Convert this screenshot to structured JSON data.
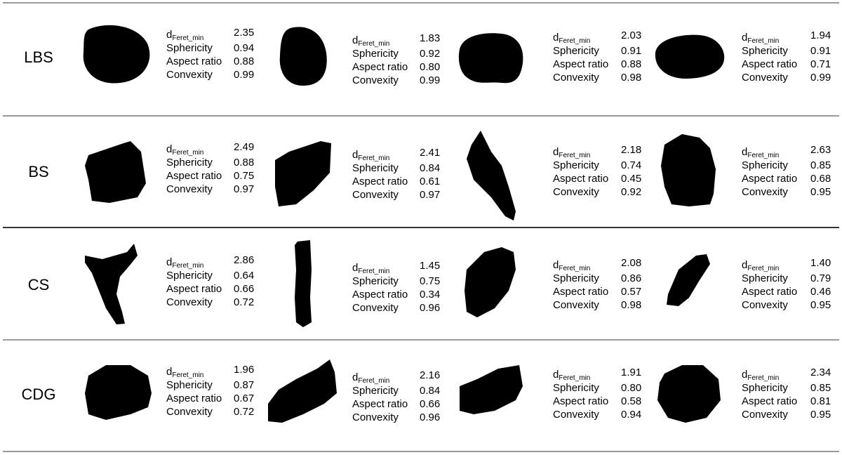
{
  "metric_symbol": "d",
  "metric_subscript": "Feret_min",
  "metric_names": [
    "Sphericity",
    "Aspect ratio",
    "Convexity"
  ],
  "rows": [
    {
      "label": "LBS",
      "particles": [
        [
          "2.35",
          "0.94",
          "0.88",
          "0.99"
        ],
        [
          "1.83",
          "0.92",
          "0.80",
          "0.99"
        ],
        [
          "2.03",
          "0.91",
          "0.88",
          "0.98"
        ],
        [
          "1.94",
          "0.91",
          "0.71",
          "0.99"
        ]
      ]
    },
    {
      "label": "BS",
      "particles": [
        [
          "2.49",
          "0.88",
          "0.75",
          "0.97"
        ],
        [
          "2.41",
          "0.84",
          "0.61",
          "0.97"
        ],
        [
          "2.18",
          "0.74",
          "0.45",
          "0.92"
        ],
        [
          "2.63",
          "0.85",
          "0.68",
          "0.95"
        ]
      ]
    },
    {
      "label": "CS",
      "particles": [
        [
          "2.86",
          "0.64",
          "0.66",
          "0.72"
        ],
        [
          "1.45",
          "0.75",
          "0.34",
          "0.96"
        ],
        [
          "2.08",
          "0.86",
          "0.57",
          "0.98"
        ],
        [
          "1.40",
          "0.79",
          "0.46",
          "0.95"
        ]
      ]
    },
    {
      "label": "CDG",
      "particles": [
        [
          "1.96",
          "0.87",
          "0.67",
          "0.72"
        ],
        [
          "2.16",
          "0.84",
          "0.66",
          "0.96"
        ],
        [
          "1.91",
          "0.80",
          "0.58",
          "0.94"
        ],
        [
          "2.34",
          "0.85",
          "0.81",
          "0.95"
        ]
      ]
    }
  ]
}
